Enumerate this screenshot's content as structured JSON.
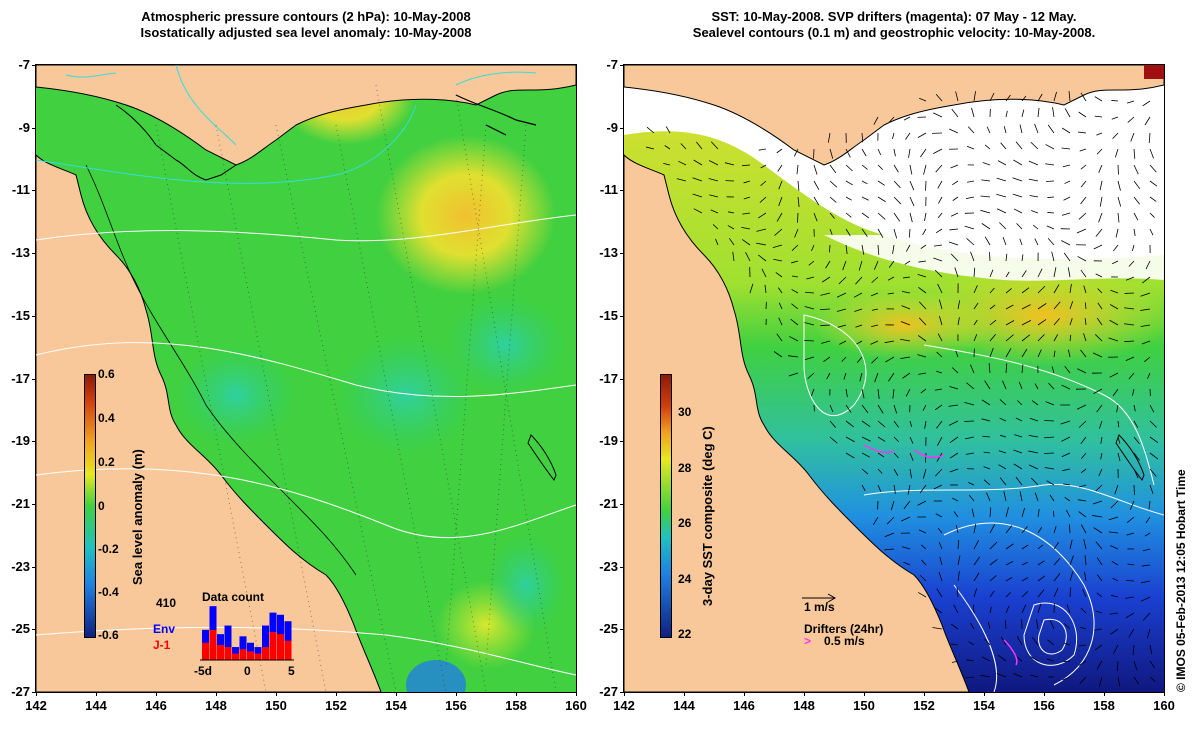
{
  "left_panel": {
    "title_line1": "Atmospheric pressure contours (2 hPa): 10-May-2008",
    "title_line2": "Isostatically adjusted sea level anomaly: 10-May-2008",
    "colorbar": {
      "label": "Sea level anomaly (m)",
      "ticks": [
        "0.6",
        "0.4",
        "0.2",
        "0",
        "-0.2",
        "-0.4",
        "-0.6"
      ]
    },
    "data_count": {
      "title": "Data count",
      "max_label": "410",
      "env_label": "Env",
      "j1_label": "J-1",
      "axis_labels": [
        "-5d",
        "0",
        "5"
      ],
      "env_color": "#0000ff",
      "j1_color": "#ff0000",
      "env_values": [
        140,
        250,
        120,
        160,
        60,
        110,
        80,
        60,
        160,
        220,
        210,
        180
      ],
      "j1_values": [
        80,
        140,
        70,
        60,
        30,
        50,
        40,
        30,
        60,
        130,
        120,
        90
      ]
    }
  },
  "right_panel": {
    "title_line1": "SST: 10-May-2008. SVP drifters (magenta): 07 May - 12 May.",
    "title_line2": "Sealevel contours (0.1 m) and geostrophic velocity: 10-May-2008.",
    "colorbar": {
      "label": "3-day SST composite (deg C)",
      "ticks": [
        "30",
        "28",
        "26",
        "24",
        "22"
      ]
    },
    "scale_label": "1 m/s",
    "drifters_label": "Drifters (24hr)",
    "drifters_speed": "0.5 m/s",
    "drifter_color": "#ff33ff"
  },
  "axes": {
    "y_ticks": [
      "-7",
      "-9",
      "-11",
      "-13",
      "-15",
      "-17",
      "-19",
      "-21",
      "-23",
      "-25",
      "-27"
    ],
    "x_ticks": [
      "142",
      "144",
      "146",
      "148",
      "150",
      "152",
      "154",
      "156",
      "158",
      "160"
    ],
    "lon_range": [
      142,
      160
    ],
    "lat_range": [
      -27,
      -7
    ]
  },
  "colors": {
    "land": "#f8c89a",
    "ocean_green": "#3dd63d",
    "anomaly_yellow": "#e8e830",
    "sst_blue": "#1a40d0",
    "coast_line": "#000000",
    "contour_white": "#ffffff",
    "contour_cyan": "#33dddd"
  },
  "credit": "© IMOS 05-Feb-2013 12:05 Hobart Time"
}
